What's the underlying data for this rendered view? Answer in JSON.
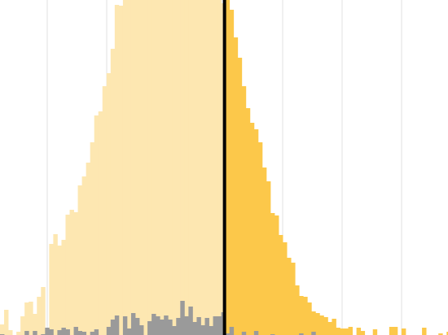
{
  "chart_data": {
    "type": "bar",
    "title": "",
    "xlabel": "",
    "ylabel": "",
    "grid": "vertical",
    "legend": "none",
    "bin_labels": [],
    "colors": {
      "light_yellow": "#fde7b1",
      "gold": "#fcc84a",
      "gray": "#9a9a9a",
      "marker": "#000000",
      "grid": "#e2e2e2"
    },
    "series": [
      {
        "values": [
          13,
          31,
          6,
          0,
          4,
          23,
          40,
          41,
          26,
          47,
          59,
          0,
          112,
          124,
          110,
          117,
          148,
          154,
          151,
          184,
          195,
          212,
          237,
          270,
          275,
          306,
          322,
          352,
          406,
          405,
          435,
          431,
          430,
          426,
          429,
          438,
          428,
          428,
          425,
          426,
          430,
          430,
          436,
          424,
          427,
          429,
          431,
          427,
          429,
          433,
          430,
          429,
          426,
          426,
          408
        ]
      },
      {
        "values": [
          0,
          0,
          0,
          0,
          0,
          0,
          0,
          0,
          0,
          0,
          0,
          0,
          0,
          0,
          0,
          0,
          0,
          0,
          0,
          0,
          0,
          0,
          0,
          0,
          0,
          0,
          0,
          0,
          0,
          0,
          0,
          0,
          0,
          0,
          0,
          0,
          0,
          0,
          0,
          0,
          0,
          0,
          0,
          0,
          0,
          0,
          0,
          0,
          0,
          0,
          0,
          0,
          0,
          0,
          0,
          425,
          400,
          366,
          341,
          306,
          279,
          261,
          253,
          237,
          206,
          189,
          150,
          147,
          123,
          114,
          95,
          89,
          61,
          48,
          47,
          40,
          29,
          27,
          24,
          22,
          16,
          20,
          9,
          8,
          8,
          10,
          0,
          9,
          5,
          0,
          0,
          7,
          0,
          0,
          0,
          10,
          10,
          0,
          8,
          0,
          0,
          0,
          0,
          9,
          0,
          0,
          0,
          2,
          0,
          4
        ]
      },
      {
        "values": [
          1,
          0,
          0,
          0,
          0,
          0,
          5,
          0,
          5,
          0,
          1,
          9,
          7,
          0,
          6,
          9,
          7,
          0,
          10,
          5,
          4,
          0,
          4,
          7,
          0,
          0,
          10,
          19,
          24,
          0,
          23,
          8,
          27,
          21,
          12,
          0,
          17,
          26,
          23,
          19,
          24,
          19,
          11,
          21,
          42,
          23,
          35,
          16,
          22,
          12,
          21,
          11,
          23,
          23,
          28,
          2,
          10,
          0,
          0,
          4,
          0,
          0,
          5,
          0,
          0,
          0,
          1,
          0,
          0,
          0,
          0,
          0,
          0,
          2,
          0,
          0,
          4
        ]
      }
    ],
    "marker_bin": 54.8
  }
}
